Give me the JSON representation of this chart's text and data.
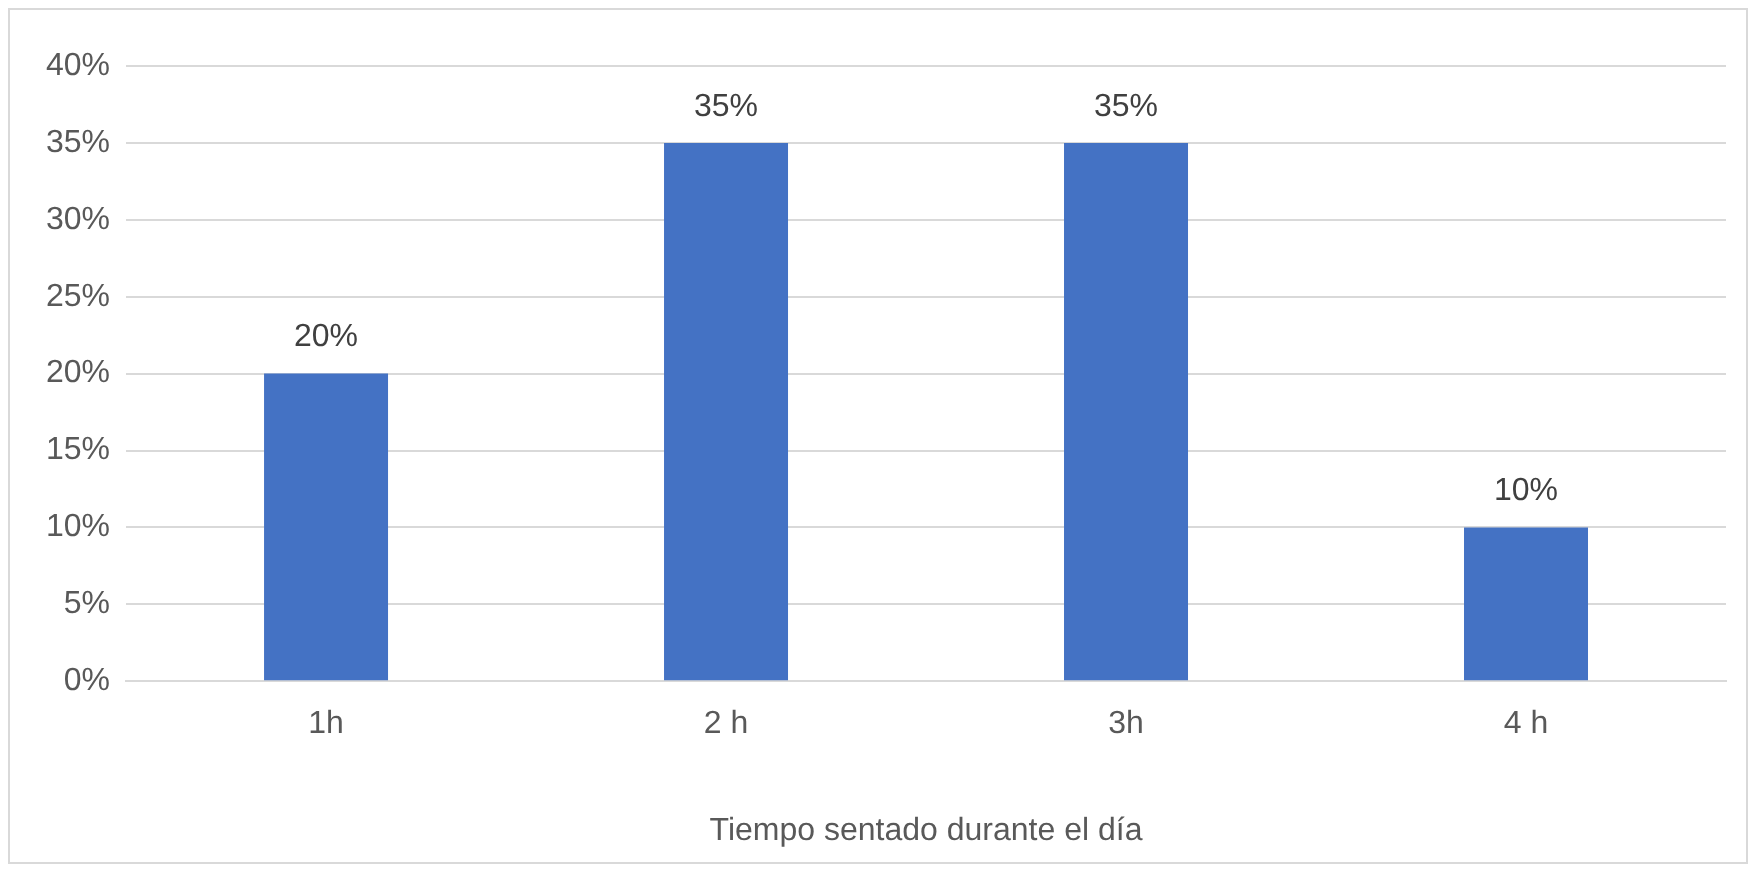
{
  "chart_data": {
    "type": "bar",
    "xlabel": "Tiempo sentado durante el día",
    "categories": [
      "1h",
      "2 h",
      "3h",
      "4 h"
    ],
    "values": [
      20,
      35,
      35,
      10
    ],
    "value_labels": [
      "20%",
      "35%",
      "35%",
      "10%"
    ],
    "color": "#4472c4",
    "ylim": [
      0,
      40
    ],
    "yticks": [
      {
        "value": 0,
        "label": "0%"
      },
      {
        "value": 5,
        "label": "5%"
      },
      {
        "value": 10,
        "label": "10%"
      },
      {
        "value": 15,
        "label": "15%"
      },
      {
        "value": 20,
        "label": "20%"
      },
      {
        "value": 25,
        "label": "25%"
      },
      {
        "value": 30,
        "label": "30%"
      },
      {
        "value": 35,
        "label": "35%"
      },
      {
        "value": 40,
        "label": "40%"
      }
    ],
    "grid": "y"
  }
}
